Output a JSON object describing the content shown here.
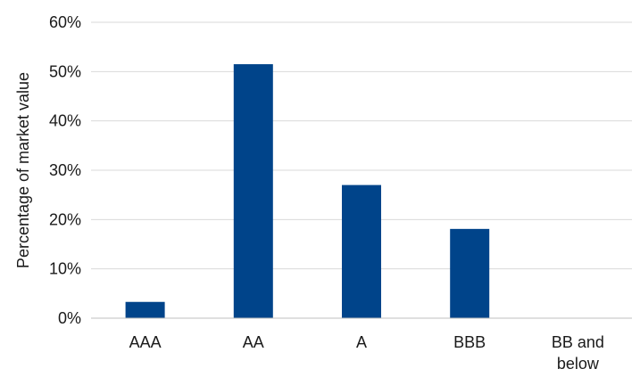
{
  "chart_data": {
    "type": "bar",
    "title": "",
    "xlabel": "",
    "ylabel": "Percentage of market value",
    "categories": [
      "AAA",
      "AA",
      "A",
      "BBB",
      "BB and below"
    ],
    "category_lines": [
      [
        "AAA"
      ],
      [
        "AA"
      ],
      [
        "A"
      ],
      [
        "BBB"
      ],
      [
        "BB and",
        "below"
      ]
    ],
    "values": [
      3.3,
      51.5,
      27.0,
      18.1,
      0.0
    ],
    "ylim": [
      0,
      60
    ],
    "y_ticks": [
      0,
      10,
      20,
      30,
      40,
      50,
      60
    ],
    "y_tick_labels": [
      "0%",
      "10%",
      "20%",
      "30%",
      "40%",
      "50%",
      "60%"
    ],
    "grid": true,
    "legend": "none",
    "colors": {
      "bar": "#00448a",
      "grid": "#d9d9d9",
      "axis": "#bfbfbf",
      "text": "#1a1a1a"
    }
  }
}
